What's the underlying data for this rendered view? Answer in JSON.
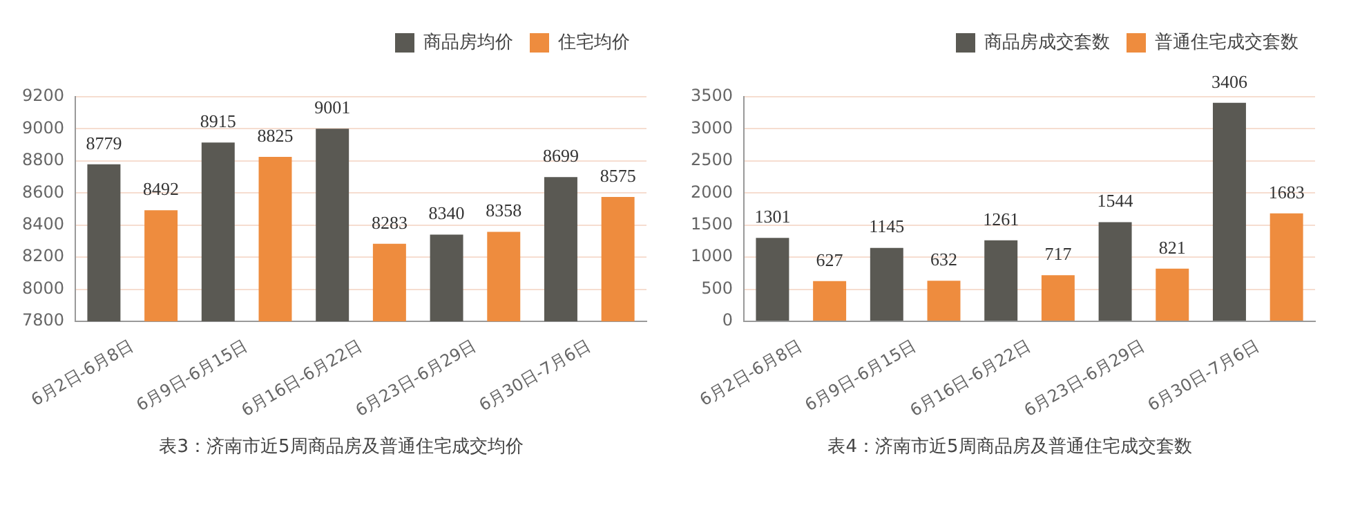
{
  "chart_data": [
    {
      "type": "bar",
      "categories": [
        "6月2日-6月8日",
        "6月9日-6月15日",
        "6月16日-6月22日",
        "6月23日-6月29日",
        "6月30日-7月6日"
      ],
      "series": [
        {
          "name": "商品房均价",
          "color": "#5a5953",
          "values": [
            8779,
            8915,
            9001,
            8340,
            8699
          ]
        },
        {
          "name": "住宅均价",
          "color": "#ee8c3e",
          "values": [
            8492,
            8825,
            8283,
            8358,
            8575
          ]
        }
      ],
      "ylim": [
        7800,
        9200
      ],
      "yticks": [
        7800,
        8000,
        8200,
        8400,
        8600,
        8800,
        9000,
        9200
      ],
      "grid": "y",
      "legend": "top right",
      "data_labels": true,
      "annotations": [
        "表3：济南市近5周商品房及普通住宅成交均价"
      ]
    },
    {
      "type": "bar",
      "categories": [
        "6月2日-6月8日",
        "6月9日-6月15日",
        "6月16日-6月22日",
        "6月23日-6月29日",
        "6月30日-7月6日"
      ],
      "series": [
        {
          "name": "商品房成交套数",
          "color": "#5a5953",
          "values": [
            1301,
            1145,
            1261,
            1544,
            3406
          ]
        },
        {
          "name": "普通住宅成交套数",
          "color": "#ee8c3e",
          "values": [
            627,
            632,
            717,
            821,
            1683
          ]
        }
      ],
      "ylim": [
        0,
        3500
      ],
      "yticks": [
        0,
        500,
        1000,
        1500,
        2000,
        2500,
        3000,
        3500
      ],
      "grid": "y",
      "legend": "top right",
      "data_labels": true,
      "annotations": [
        "表4：济南市近5周商品房及普通住宅成交套数"
      ]
    }
  ]
}
